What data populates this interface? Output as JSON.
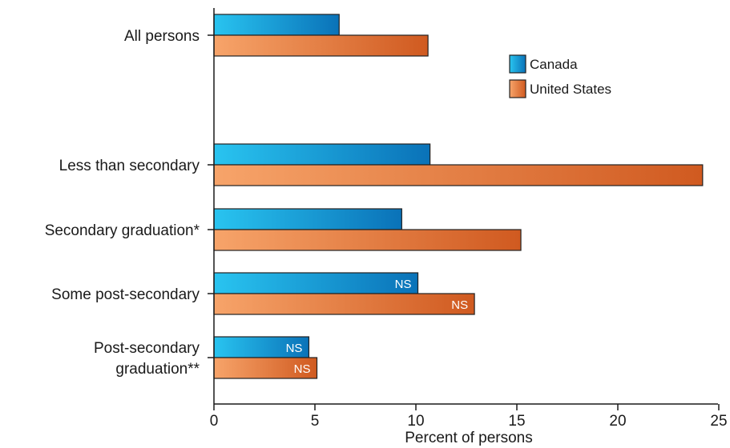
{
  "chart_data": {
    "type": "bar",
    "orientation": "horizontal",
    "title": "",
    "xlabel": "Percent of persons",
    "ylabel": "",
    "xlim": [
      0,
      25
    ],
    "xticks": [
      "0",
      "5",
      "10",
      "15",
      "20",
      "25"
    ],
    "grid": false,
    "legend_position": "top-right",
    "categories": [
      {
        "lines": [
          "All persons"
        ]
      },
      {
        "lines": [
          "Less than secondary"
        ]
      },
      {
        "lines": [
          "Secondary graduation*"
        ]
      },
      {
        "lines": [
          "Some post-secondary"
        ]
      },
      {
        "lines": [
          "Post-secondary",
          "graduation**"
        ]
      }
    ],
    "series": [
      {
        "name": "Canada",
        "color_light": "#29c4f0",
        "color_dark": "#0a72b8",
        "values": [
          6.2,
          10.7,
          9.3,
          10.1,
          4.7
        ],
        "annotations": [
          "",
          "",
          "",
          "NS",
          "NS"
        ]
      },
      {
        "name": "United States",
        "color_light": "#f7a46a",
        "color_dark": "#d05a20",
        "values": [
          10.6,
          24.2,
          15.2,
          12.9,
          5.1
        ],
        "annotations": [
          "",
          "",
          "",
          "NS",
          "NS"
        ]
      }
    ]
  }
}
